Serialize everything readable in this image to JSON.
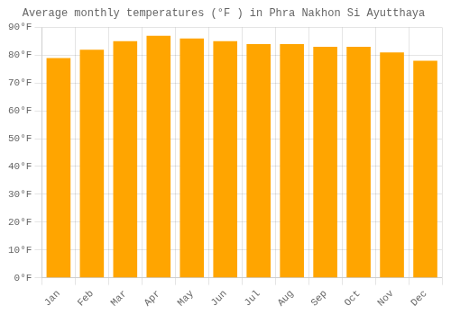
{
  "chart_data": {
    "type": "bar",
    "title": "Average monthly temperatures (°F ) in Phra Nakhon Si Ayutthaya",
    "categories": [
      "Jan",
      "Feb",
      "Mar",
      "Apr",
      "May",
      "Jun",
      "Jul",
      "Aug",
      "Sep",
      "Oct",
      "Nov",
      "Dec"
    ],
    "values": [
      79,
      82,
      85,
      87,
      86,
      85,
      84,
      84,
      83,
      83,
      81,
      78
    ],
    "color": "#FFA500",
    "ylim": [
      0,
      90
    ],
    "yticks": [
      {
        "value": 0,
        "label": "0°F"
      },
      {
        "value": 10,
        "label": "10°F"
      },
      {
        "value": 20,
        "label": "20°F"
      },
      {
        "value": 30,
        "label": "30°F"
      },
      {
        "value": 40,
        "label": "40°F"
      },
      {
        "value": 50,
        "label": "50°F"
      },
      {
        "value": 60,
        "label": "60°F"
      },
      {
        "value": 70,
        "label": "70°F"
      },
      {
        "value": 80,
        "label": "80°F"
      },
      {
        "value": 90,
        "label": "90°F"
      }
    ],
    "grid": true
  }
}
